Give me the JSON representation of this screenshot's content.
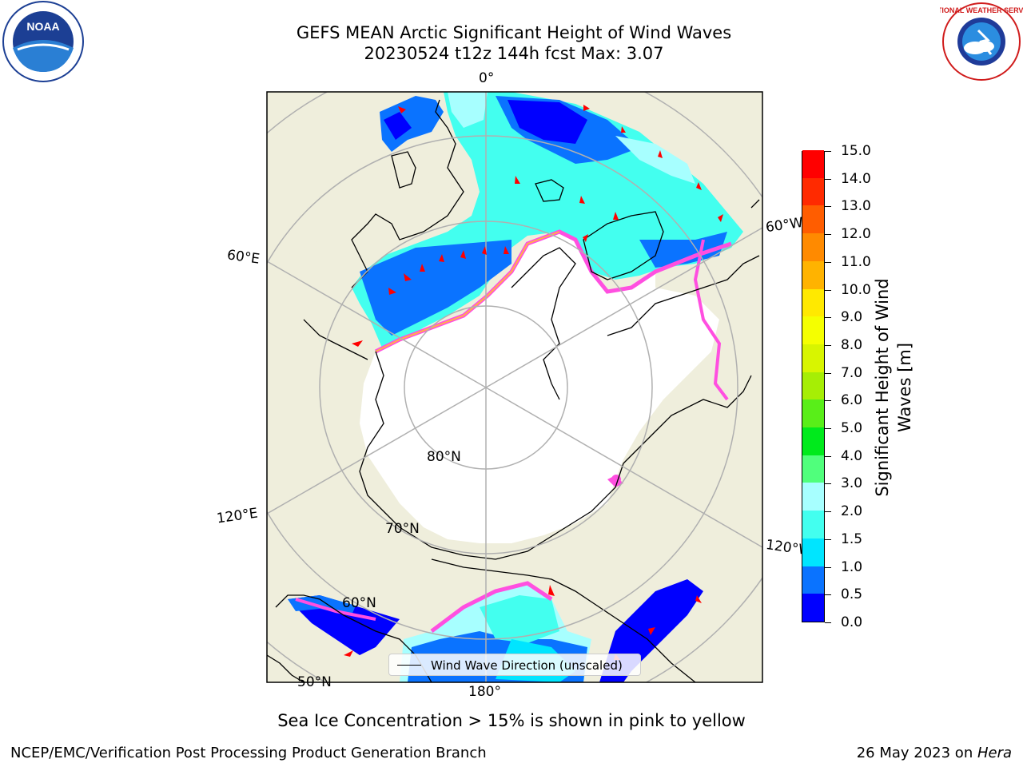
{
  "title": {
    "line1": "GEFS MEAN Arctic Significant Height of Wind Waves",
    "line2": "20230524 t12z 144h fcst   Max: 3.07"
  },
  "logos": {
    "left": {
      "text": "NOAA",
      "icon": "noaa-logo-icon"
    },
    "right": {
      "text": "NATIONAL WEATHER SERVICE",
      "icon": "nws-logo-icon"
    }
  },
  "map": {
    "longitude_labels": {
      "top": "0°",
      "right_upper": "60°W",
      "right_lower": "120°W",
      "bottom": "180°",
      "left_lower": "120°E",
      "left_upper": "60°E"
    },
    "latitude_labels": {
      "inner": "80°N",
      "middle": "70°N",
      "outer": "60°N",
      "edge": "50°N"
    },
    "colors": {
      "land": "#efeedc",
      "ice": "#ffffff",
      "grid": "#b0b0b0",
      "coast": "#000000",
      "arrow": "#ff0000"
    }
  },
  "colorbar": {
    "title_line1": "Significant Height of Wind",
    "title_line2": "Waves [m]",
    "ticks": [
      "0.0",
      "0.5",
      "1.0",
      "1.5",
      "2.0",
      "3.0",
      "4.0",
      "5.0",
      "6.0",
      "7.0",
      "8.0",
      "9.0",
      "10.0",
      "11.0",
      "12.0",
      "13.0",
      "14.0",
      "15.0"
    ],
    "colors": [
      "#0000ff",
      "#0a73ff",
      "#00e5ff",
      "#43ffef",
      "#a7ffff",
      "#50ff7c",
      "#00ea1c",
      "#59ee19",
      "#a6ee05",
      "#d8f500",
      "#f5ff00",
      "#ffe900",
      "#ffb300",
      "#ff8a00",
      "#ff5d00",
      "#ff2a00",
      "#ff0000"
    ]
  },
  "legend": {
    "label": "Wind Wave Direction (unscaled)"
  },
  "subtitle": "Sea Ice Concentration > 15% is shown in pink to yellow",
  "footer": {
    "left": "NCEP/EMC/Verification Post Processing Product Generation Branch",
    "right_date": "26 May 2023 on ",
    "right_machine": "Hera"
  }
}
